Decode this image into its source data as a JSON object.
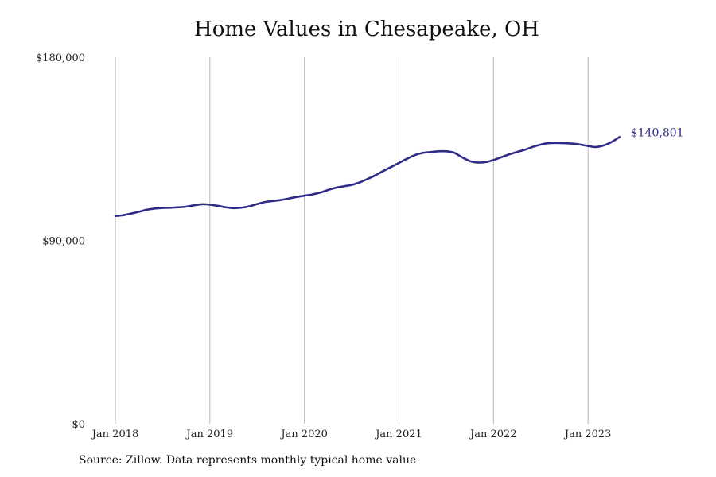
{
  "chart_data": {
    "type": "line",
    "title": "Home Values in Chesapeake, OH",
    "xlabel": "",
    "ylabel": "",
    "ylim": [
      0,
      180000
    ],
    "xlim": [
      "2018-01",
      "2024-01"
    ],
    "y_ticks": [
      {
        "value": 0,
        "label": "$0"
      },
      {
        "value": 90000,
        "label": "$90,000"
      },
      {
        "value": 180000,
        "label": "$180,000"
      }
    ],
    "x_ticks": [
      {
        "value": "2018-01",
        "label": "Jan 2018"
      },
      {
        "value": "2019-01",
        "label": "Jan 2019"
      },
      {
        "value": "2020-01",
        "label": "Jan 2020"
      },
      {
        "value": "2021-01",
        "label": "Jan 2021"
      },
      {
        "value": "2022-01",
        "label": "Jan 2022"
      },
      {
        "value": "2023-01",
        "label": "Jan 2023"
      }
    ],
    "grid": {
      "vertical": true,
      "horizontal": false
    },
    "series": [
      {
        "color": "#2e2a86",
        "end_label": "$140,801",
        "points": [
          [
            "2018-01",
            102000
          ],
          [
            "2018-02",
            102400
          ],
          [
            "2018-03",
            103200
          ],
          [
            "2018-04",
            104100
          ],
          [
            "2018-05",
            105100
          ],
          [
            "2018-06",
            105700
          ],
          [
            "2018-07",
            106000
          ],
          [
            "2018-08",
            106100
          ],
          [
            "2018-09",
            106300
          ],
          [
            "2018-10",
            106600
          ],
          [
            "2018-11",
            107300
          ],
          [
            "2018-12",
            107800
          ],
          [
            "2019-01",
            107600
          ],
          [
            "2019-02",
            107000
          ],
          [
            "2019-03",
            106300
          ],
          [
            "2019-04",
            105900
          ],
          [
            "2019-05",
            106100
          ],
          [
            "2019-06",
            106800
          ],
          [
            "2019-07",
            107900
          ],
          [
            "2019-08",
            108900
          ],
          [
            "2019-09",
            109400
          ],
          [
            "2019-10",
            109900
          ],
          [
            "2019-11",
            110600
          ],
          [
            "2019-12",
            111400
          ],
          [
            "2020-01",
            112000
          ],
          [
            "2020-02",
            112600
          ],
          [
            "2020-03",
            113500
          ],
          [
            "2020-04",
            114800
          ],
          [
            "2020-05",
            115900
          ],
          [
            "2020-06",
            116600
          ],
          [
            "2020-07",
            117300
          ],
          [
            "2020-08",
            118500
          ],
          [
            "2020-09",
            120200
          ],
          [
            "2020-10",
            122000
          ],
          [
            "2020-11",
            124100
          ],
          [
            "2020-12",
            126100
          ],
          [
            "2021-01",
            128100
          ],
          [
            "2021-02",
            130100
          ],
          [
            "2021-03",
            131900
          ],
          [
            "2021-04",
            133000
          ],
          [
            "2021-05",
            133400
          ],
          [
            "2021-06",
            133800
          ],
          [
            "2021-07",
            133800
          ],
          [
            "2021-08",
            133100
          ],
          [
            "2021-09",
            130900
          ],
          [
            "2021-10",
            129000
          ],
          [
            "2021-11",
            128300
          ],
          [
            "2021-12",
            128500
          ],
          [
            "2022-01",
            129500
          ],
          [
            "2022-02",
            130900
          ],
          [
            "2022-03",
            132300
          ],
          [
            "2022-04",
            133500
          ],
          [
            "2022-05",
            134600
          ],
          [
            "2022-06",
            136000
          ],
          [
            "2022-07",
            137100
          ],
          [
            "2022-08",
            137800
          ],
          [
            "2022-09",
            137900
          ],
          [
            "2022-10",
            137800
          ],
          [
            "2022-11",
            137600
          ],
          [
            "2022-12",
            137100
          ],
          [
            "2023-01",
            136400
          ],
          [
            "2023-02",
            135900
          ],
          [
            "2023-03",
            136700
          ],
          [
            "2023-04",
            138400
          ],
          [
            "2023-05",
            140801
          ]
        ]
      }
    ]
  },
  "source_note": "Source: Zillow. Data represents monthly typical home value"
}
